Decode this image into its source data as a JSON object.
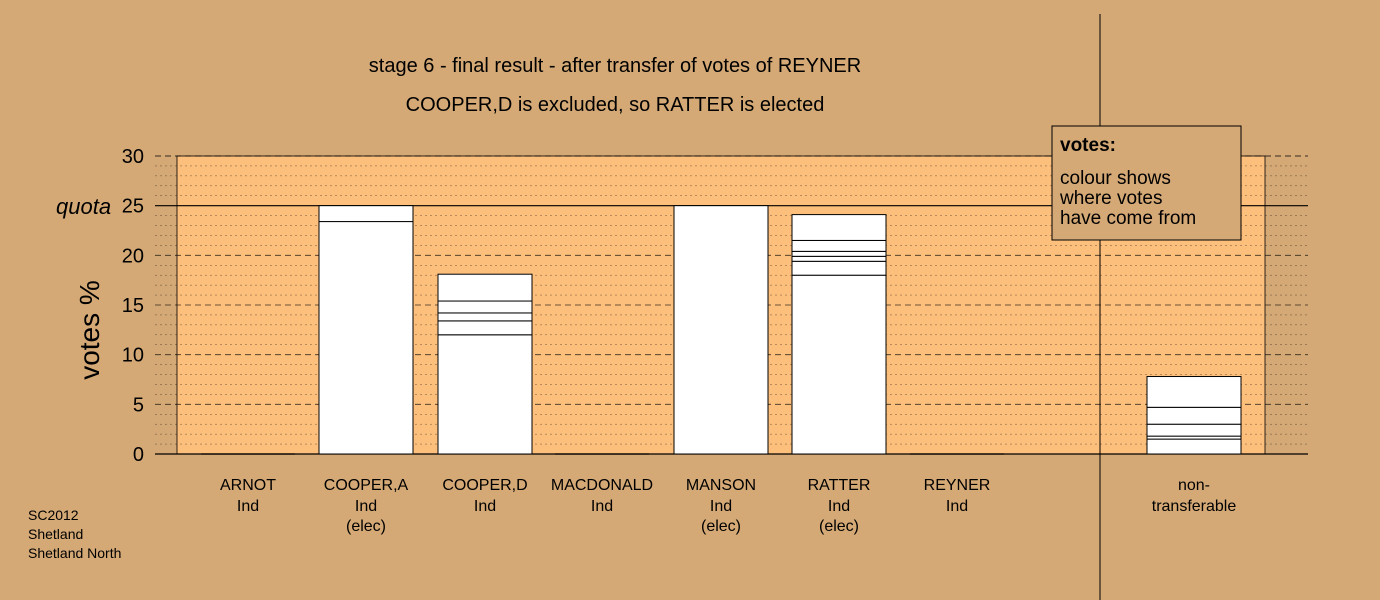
{
  "title_line1": "stage 6 - final result - after transfer of votes of REYNER",
  "title_line2": "COOPER,D is excluded, so RATTER is elected",
  "ylabel": "votes %",
  "quota_label": "quota",
  "legend": {
    "heading": "votes:",
    "lines": [
      "colour shows",
      "where votes",
      "have come from"
    ]
  },
  "footer": [
    "SC2012",
    "Shetland",
    "Shetland North"
  ],
  "colors": {
    "background": "#d4a976",
    "plot_area": "#fcbf7c",
    "bar_fill": "#ffffff",
    "legend_box": "#c89a66"
  },
  "chart_data": {
    "type": "bar",
    "ylim": [
      0,
      30
    ],
    "yticks": [
      0,
      5,
      10,
      15,
      20,
      25,
      30
    ],
    "quota": 25,
    "grid": true,
    "legend_position": "top-right",
    "candidates": [
      {
        "name": "ARNOT",
        "party": "Ind",
        "status": "",
        "total": 0,
        "segments": []
      },
      {
        "name": "COOPER,A",
        "party": "Ind",
        "status": "(elec)",
        "total": 25,
        "segments": [
          23.4,
          1.6
        ]
      },
      {
        "name": "COOPER,D",
        "party": "Ind",
        "status": "",
        "total": 18.1,
        "segments": [
          12.0,
          1.4,
          0.8,
          1.2,
          2.7
        ]
      },
      {
        "name": "MACDONALD",
        "party": "Ind",
        "status": "",
        "total": 0,
        "segments": []
      },
      {
        "name": "MANSON",
        "party": "Ind",
        "status": "(elec)",
        "total": 25,
        "segments": [
          25.0
        ]
      },
      {
        "name": "RATTER",
        "party": "Ind",
        "status": "(elec)",
        "total": 24.1,
        "segments": [
          18.0,
          1.4,
          0.5,
          0.5,
          1.1,
          2.6
        ]
      },
      {
        "name": "REYNER",
        "party": "Ind",
        "status": "",
        "total": 0,
        "segments": []
      }
    ],
    "nontransferable": {
      "name_line1": "non-",
      "name_line2": "transferable",
      "total": 7.8,
      "segments": [
        1.5,
        0.3,
        1.2,
        1.7,
        3.1
      ]
    }
  }
}
